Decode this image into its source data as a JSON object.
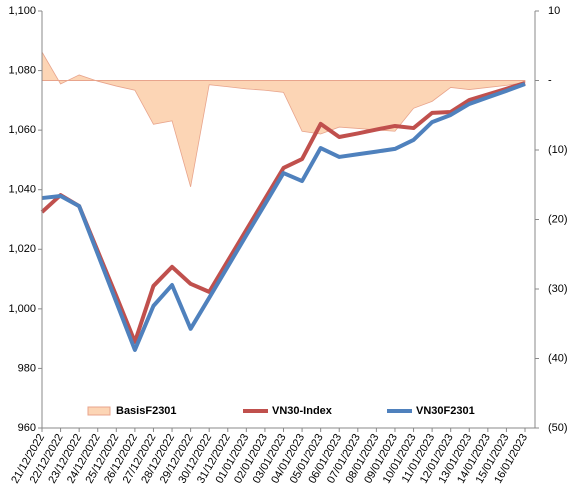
{
  "chart_data": {
    "type": "line",
    "categories": [
      "21/12/2022",
      "22/12/2022",
      "23/12/2022",
      "24/12/2022",
      "25/12/2022",
      "26/12/2022",
      "27/12/2022",
      "28/12/2022",
      "29/12/2022",
      "30/12/2022",
      "31/12/2022",
      "01/01/2023",
      "02/01/2023",
      "03/01/2023",
      "04/01/2023",
      "05/01/2023",
      "06/01/2023",
      "07/01/2023",
      "08/01/2023",
      "09/01/2023",
      "10/01/2023",
      "11/01/2023",
      "12/01/2023",
      "13/01/2023",
      "14/01/2023",
      "15/01/2023",
      "16/01/2023"
    ],
    "series": [
      {
        "name": "BasisF2301",
        "type": "area",
        "axis": "y2",
        "color": "#fcd5b5",
        "values": [
          4.1,
          -0.5,
          0.8,
          -0.1,
          -0.8,
          -1.4,
          -6.3,
          -5.8,
          -15.3,
          -0.6,
          -0.9,
          -1.2,
          -1.4,
          -1.7,
          -7.3,
          -7.7,
          -6.7,
          -6.9,
          -7.1,
          -7.3,
          -4.0,
          -3.0,
          -1.0,
          -1.3,
          -1.0,
          -0.7,
          -0.3
        ]
      },
      {
        "name": "VN30-Index",
        "type": "line",
        "color": "#c0504d",
        "values": [
          1032.5,
          1038.2,
          1034.5,
          1019.4,
          1004.3,
          988.9,
          1007.7,
          1014.1,
          1008.4,
          1005.7,
          1016.1,
          1026.5,
          1036.9,
          1047.3,
          1050.3,
          1062.1,
          1057.7,
          1058.9,
          1060.2,
          1061.4,
          1060.7,
          1065.8,
          1066.1,
          1070.1,
          1072.0,
          1073.9,
          1075.8
        ]
      },
      {
        "name": "VN30F2301",
        "type": "line",
        "color": "#4f81bd",
        "values": [
          1037.2,
          1037.9,
          1034.5,
          1018.4,
          1002.3,
          986.2,
          1001.0,
          1008.0,
          993.3,
          1003.7,
          1014.2,
          1024.7,
          1035.1,
          1045.6,
          1042.9,
          1054.0,
          1051.0,
          1051.9,
          1052.8,
          1053.7,
          1056.7,
          1062.7,
          1065.1,
          1068.8,
          1071.0,
          1073.2,
          1075.5
        ]
      }
    ],
    "ylim": [
      960,
      1100
    ],
    "yticks": [
      960,
      980,
      {
        "value": 1000,
        "label": "1,000"
      },
      {
        "value": 1020,
        "label": "1,020"
      },
      {
        "value": 1040,
        "label": "1,040"
      },
      {
        "value": 1060,
        "label": "1,060"
      },
      {
        "value": 1080,
        "label": "1,080"
      },
      {
        "value": 1100,
        "label": "1,100"
      }
    ],
    "y2lim": [
      -50,
      10
    ],
    "y2ticks": [
      {
        "value": -50,
        "label": "(50)"
      },
      {
        "value": -40,
        "label": "(40)"
      },
      {
        "value": -30,
        "label": "(30)"
      },
      {
        "value": -20,
        "label": "(20)"
      },
      {
        "value": -10,
        "label": "(10)"
      },
      {
        "value": 0,
        "label": "-"
      },
      10
    ],
    "legend": "bottom"
  }
}
